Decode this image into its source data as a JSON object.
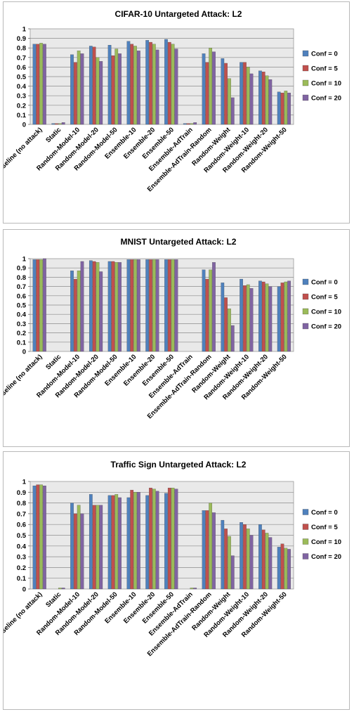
{
  "chart_data": [
    {
      "type": "bar",
      "title": "CIFAR-10 Untargeted Attack: L2",
      "categories": [
        "Baseline (no attack)",
        "Static",
        "Random-Model-10",
        "Random-Model-20",
        "Random-Model-50",
        "Ensemble-10",
        "Ensemble-20",
        "Ensemble-50",
        "Ensemble-AdTrain",
        "Ensemble-AdTrain-Random",
        "Random-Weight",
        "Random-Weight-10",
        "Random-Weight-20",
        "Random-Weight-50"
      ],
      "ylim": [
        0,
        1
      ],
      "yticks": [
        "0",
        "0.1",
        "0.2",
        "0.3",
        "0.4",
        "0.5",
        "0.6",
        "0.7",
        "0.8",
        "0.9",
        "1"
      ],
      "grid": true,
      "legend_position": "right",
      "series": [
        {
          "name": "Conf = 0",
          "color": "#4f81bd",
          "values": [
            0.84,
            0.01,
            0.73,
            0.82,
            0.83,
            0.87,
            0.88,
            0.89,
            0.01,
            0.74,
            0.69,
            0.65,
            0.56,
            0.34
          ]
        },
        {
          "name": "Conf = 5",
          "color": "#c0504d",
          "values": [
            0.84,
            0.01,
            0.65,
            0.81,
            0.72,
            0.84,
            0.86,
            0.86,
            0.01,
            0.65,
            0.64,
            0.65,
            0.55,
            0.33
          ]
        },
        {
          "name": "Conf = 10",
          "color": "#9bbb59",
          "values": [
            0.85,
            0.01,
            0.77,
            0.7,
            0.79,
            0.82,
            0.84,
            0.84,
            0.01,
            0.8,
            0.48,
            0.6,
            0.51,
            0.35
          ]
        },
        {
          "name": "Conf = 20",
          "color": "#8064a2",
          "values": [
            0.84,
            0.02,
            0.74,
            0.66,
            0.74,
            0.77,
            0.78,
            0.79,
            0.02,
            0.76,
            0.28,
            0.53,
            0.47,
            0.33
          ]
        }
      ]
    },
    {
      "type": "bar",
      "title": "MNIST Untargeted Attack: L2",
      "categories": [
        "Baseline (no attack)",
        "Static",
        "Random-Model-10",
        "Random-Model-20",
        "Random-Model-50",
        "Ensemble-10",
        "Ensemble-20",
        "Ensemble-50",
        "Ensemble-AdTrain",
        "Ensemble-AdTrain-Random",
        "Random-Weight",
        "Random-Weight-10",
        "Random-Weight-20",
        "Random-Weight-50"
      ],
      "ylim": [
        0,
        1
      ],
      "yticks": [
        "0",
        "0.1",
        "0.2",
        "0.3",
        "0.4",
        "0.5",
        "0.6",
        "0.7",
        "0.8",
        "0.9",
        "1"
      ],
      "grid": true,
      "legend_position": "right",
      "series": [
        {
          "name": "Conf = 0",
          "color": "#4f81bd",
          "values": [
            0.99,
            0.0,
            0.87,
            0.98,
            0.97,
            0.99,
            0.99,
            0.99,
            0.0,
            0.88,
            0.74,
            0.78,
            0.76,
            0.7
          ]
        },
        {
          "name": "Conf = 5",
          "color": "#c0504d",
          "values": [
            0.99,
            0.0,
            0.78,
            0.97,
            0.97,
            0.99,
            0.99,
            0.99,
            0.0,
            0.78,
            0.58,
            0.71,
            0.75,
            0.74
          ]
        },
        {
          "name": "Conf = 10",
          "color": "#9bbb59",
          "values": [
            0.99,
            0.0,
            0.87,
            0.96,
            0.96,
            0.99,
            0.99,
            0.99,
            0.0,
            0.88,
            0.46,
            0.72,
            0.73,
            0.75
          ]
        },
        {
          "name": "Conf = 20",
          "color": "#8064a2",
          "values": [
            1.0,
            0.0,
            0.97,
            0.86,
            0.96,
            0.99,
            0.99,
            0.99,
            0.0,
            0.96,
            0.28,
            0.68,
            0.7,
            0.76
          ]
        }
      ]
    },
    {
      "type": "bar",
      "title": "Traffic Sign Untargeted  Attack: L2",
      "categories": [
        "Baseline (no attack)",
        "Static",
        "Random-Model-10",
        "Random-Model-20",
        "Random-Model-50",
        "Ensemble-10",
        "Ensemble-20",
        "Ensemble-50",
        "Ensemble-AdTrain",
        "Ensemble-AdTrain-Random",
        "Random-Weight",
        "Random-Weight-10",
        "Random-Weight-20",
        "Random-Weight-50"
      ],
      "ylim": [
        0,
        1
      ],
      "yticks": [
        "0",
        "0.1",
        "0.2",
        "0.3",
        "0.4",
        "0.5",
        "0.6",
        "0.7",
        "0.8",
        "0.9",
        "1"
      ],
      "grid": true,
      "legend_position": "right",
      "series": [
        {
          "name": "Conf = 0",
          "color": "#4f81bd",
          "values": [
            0.96,
            0.0,
            0.8,
            0.88,
            0.87,
            0.85,
            0.87,
            0.89,
            0.0,
            0.73,
            0.64,
            0.62,
            0.6,
            0.39
          ]
        },
        {
          "name": "Conf = 5",
          "color": "#c0504d",
          "values": [
            0.97,
            0.0,
            0.7,
            0.78,
            0.87,
            0.92,
            0.94,
            0.94,
            0.0,
            0.73,
            0.56,
            0.6,
            0.55,
            0.42
          ]
        },
        {
          "name": "Conf = 10",
          "color": "#9bbb59",
          "values": [
            0.97,
            0.01,
            0.78,
            0.78,
            0.88,
            0.9,
            0.93,
            0.94,
            0.01,
            0.8,
            0.49,
            0.56,
            0.52,
            0.38
          ]
        },
        {
          "name": "Conf = 20",
          "color": "#8064a2",
          "values": [
            0.96,
            0.01,
            0.7,
            0.78,
            0.85,
            0.9,
            0.91,
            0.93,
            0.01,
            0.71,
            0.31,
            0.5,
            0.48,
            0.37
          ]
        }
      ]
    }
  ]
}
